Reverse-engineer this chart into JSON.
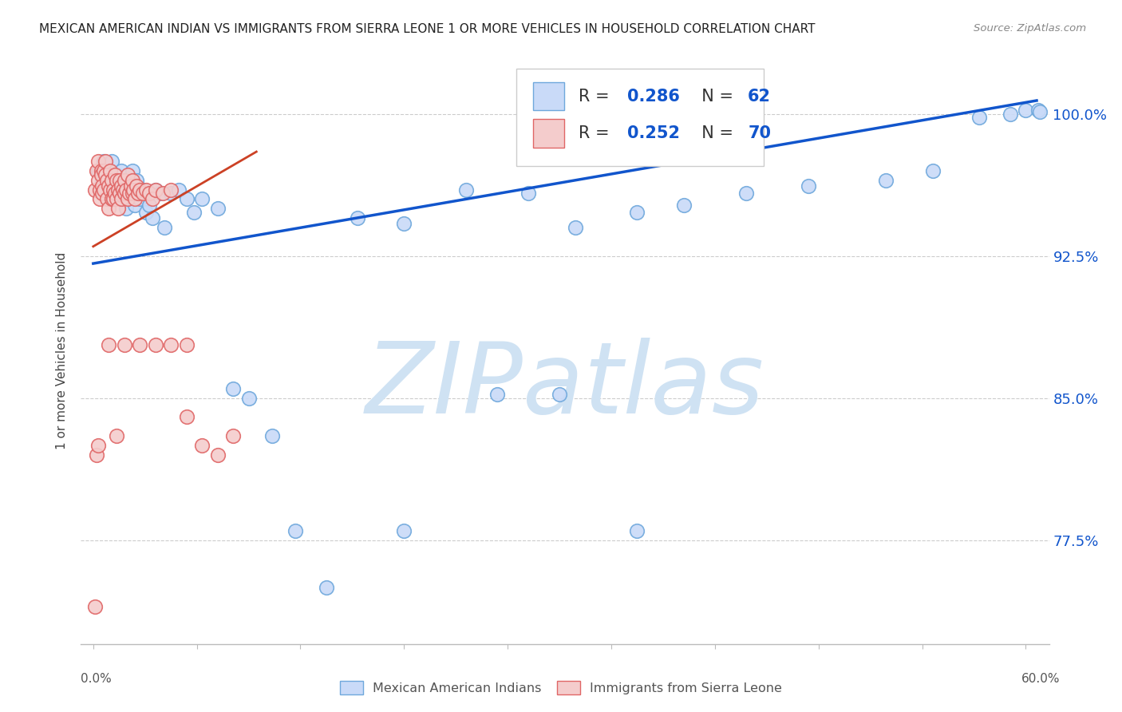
{
  "title": "MEXICAN AMERICAN INDIAN VS IMMIGRANTS FROM SIERRA LEONE 1 OR MORE VEHICLES IN HOUSEHOLD CORRELATION CHART",
  "source": "Source: ZipAtlas.com",
  "ylabel": "1 or more Vehicles in Household",
  "ylim": [
    0.72,
    1.03
  ],
  "xlim": [
    -0.008,
    0.615
  ],
  "yticks": [
    0.775,
    0.85,
    0.925,
    1.0
  ],
  "ytick_labels": [
    "77.5%",
    "85.0%",
    "92.5%",
    "100.0%"
  ],
  "xtick_left_label": "0.0%",
  "xtick_right_label": "60.0%",
  "blue_R": 0.286,
  "blue_N": 62,
  "pink_R": 0.252,
  "pink_N": 70,
  "blue_dot_facecolor": "#c9daf8",
  "blue_dot_edge": "#6fa8dc",
  "pink_dot_facecolor": "#f4cccc",
  "pink_dot_edge": "#e06666",
  "blue_line_color": "#1155cc",
  "pink_line_color": "#cc4125",
  "legend_label_blue": "Mexican American Indians",
  "legend_label_pink": "Immigrants from Sierra Leone",
  "watermark_text": "ZIPatlas",
  "watermark_color": "#cfe2f3",
  "grid_color": "#cccccc",
  "blue_trend_x0": 0.0,
  "blue_trend_y0": 0.921,
  "blue_trend_x1": 0.607,
  "blue_trend_y1": 1.007,
  "pink_trend_x0": 0.0,
  "pink_trend_y0": 0.93,
  "pink_trend_x1": 0.105,
  "pink_trend_y1": 0.98,
  "blue_x": [
    0.003,
    0.006,
    0.007,
    0.009,
    0.01,
    0.011,
    0.012,
    0.013,
    0.014,
    0.015,
    0.016,
    0.017,
    0.018,
    0.019,
    0.02,
    0.021,
    0.022,
    0.023,
    0.024,
    0.025,
    0.026,
    0.027,
    0.028,
    0.03,
    0.032,
    0.034,
    0.036,
    0.038,
    0.04,
    0.043,
    0.046,
    0.05,
    0.055,
    0.06,
    0.065,
    0.07,
    0.08,
    0.09,
    0.1,
    0.115,
    0.13,
    0.15,
    0.17,
    0.2,
    0.24,
    0.28,
    0.31,
    0.35,
    0.38,
    0.42,
    0.46,
    0.51,
    0.54,
    0.57,
    0.59,
    0.6,
    0.608,
    0.609,
    0.26,
    0.3,
    0.2,
    0.35
  ],
  "blue_y": [
    0.97,
    0.965,
    0.975,
    0.96,
    0.968,
    0.955,
    0.975,
    0.965,
    0.96,
    0.968,
    0.955,
    0.965,
    0.97,
    0.958,
    0.96,
    0.95,
    0.962,
    0.955,
    0.958,
    0.97,
    0.96,
    0.952,
    0.965,
    0.955,
    0.96,
    0.948,
    0.952,
    0.945,
    0.96,
    0.958,
    0.94,
    0.958,
    0.96,
    0.955,
    0.948,
    0.955,
    0.95,
    0.855,
    0.85,
    0.83,
    0.78,
    0.75,
    0.945,
    0.942,
    0.96,
    0.958,
    0.94,
    0.948,
    0.952,
    0.958,
    0.962,
    0.965,
    0.97,
    0.998,
    1.0,
    1.002,
    1.002,
    1.001,
    0.852,
    0.852,
    0.78,
    0.78
  ],
  "pink_x": [
    0.001,
    0.002,
    0.003,
    0.003,
    0.004,
    0.004,
    0.005,
    0.005,
    0.006,
    0.006,
    0.007,
    0.007,
    0.008,
    0.008,
    0.009,
    0.009,
    0.01,
    0.01,
    0.011,
    0.011,
    0.012,
    0.012,
    0.013,
    0.013,
    0.014,
    0.014,
    0.015,
    0.015,
    0.016,
    0.016,
    0.017,
    0.017,
    0.018,
    0.018,
    0.019,
    0.02,
    0.02,
    0.021,
    0.022,
    0.022,
    0.023,
    0.024,
    0.025,
    0.025,
    0.026,
    0.027,
    0.028,
    0.029,
    0.03,
    0.032,
    0.034,
    0.036,
    0.038,
    0.04,
    0.045,
    0.05,
    0.06,
    0.07,
    0.08,
    0.09,
    0.01,
    0.02,
    0.03,
    0.04,
    0.05,
    0.06,
    0.001,
    0.002,
    0.003,
    0.015
  ],
  "pink_y": [
    0.96,
    0.97,
    0.965,
    0.975,
    0.96,
    0.955,
    0.97,
    0.968,
    0.962,
    0.958,
    0.97,
    0.96,
    0.975,
    0.968,
    0.965,
    0.955,
    0.962,
    0.95,
    0.96,
    0.97,
    0.955,
    0.965,
    0.96,
    0.955,
    0.968,
    0.958,
    0.965,
    0.955,
    0.96,
    0.95,
    0.965,
    0.958,
    0.962,
    0.955,
    0.96,
    0.965,
    0.958,
    0.96,
    0.955,
    0.968,
    0.958,
    0.962,
    0.965,
    0.958,
    0.96,
    0.955,
    0.962,
    0.958,
    0.96,
    0.958,
    0.96,
    0.958,
    0.955,
    0.96,
    0.958,
    0.96,
    0.84,
    0.825,
    0.82,
    0.83,
    0.878,
    0.878,
    0.878,
    0.878,
    0.878,
    0.878,
    0.74,
    0.82,
    0.825,
    0.83
  ]
}
